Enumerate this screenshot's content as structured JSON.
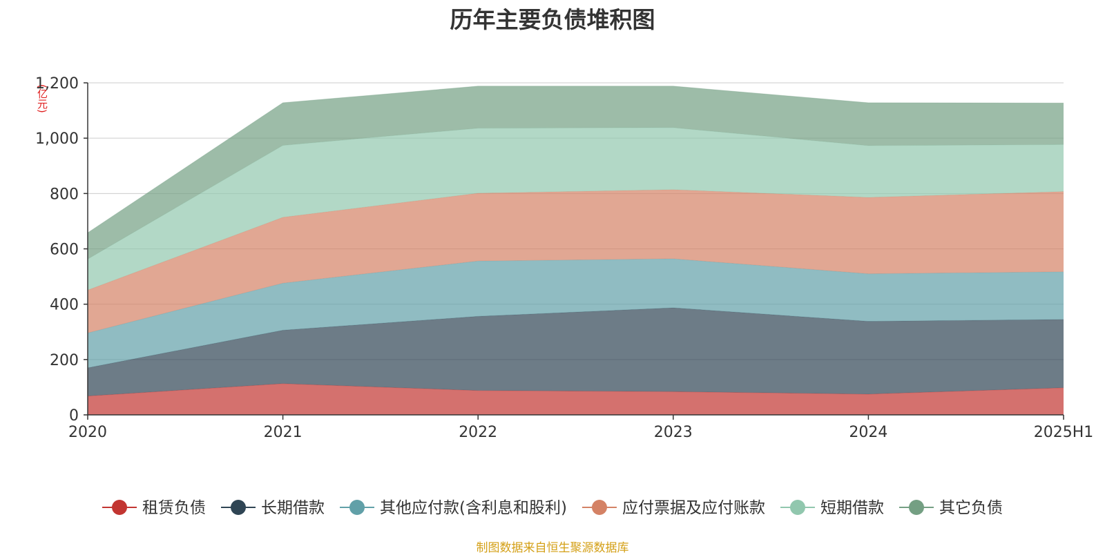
{
  "chart_data": {
    "type": "area",
    "stacked": true,
    "title": "历年主要负债堆积图",
    "unit_label": "(亿元)",
    "x": [
      "2020",
      "2021",
      "2022",
      "2023",
      "2024",
      "2025H1"
    ],
    "ylim": [
      0,
      1200
    ],
    "yticks": [
      0,
      200,
      400,
      600,
      800,
      1000,
      1200
    ],
    "ytick_labels": [
      "0",
      "200",
      "400",
      "600",
      "800",
      "1,000",
      "1,200"
    ],
    "grid": true,
    "legend_position": "bottom",
    "series": [
      {
        "name": "租赁负债",
        "color": "#c23531",
        "values": [
          68,
          113,
          88,
          84,
          75,
          98
        ]
      },
      {
        "name": "长期借款",
        "color": "#2f4554",
        "values": [
          102,
          193,
          268,
          303,
          263,
          247
        ]
      },
      {
        "name": "其他应付款(含利息和股利)",
        "color": "#61a0a8",
        "values": [
          126,
          170,
          200,
          177,
          172,
          172
        ]
      },
      {
        "name": "应付票据及应付账款",
        "color": "#d48265",
        "values": [
          155,
          238,
          245,
          250,
          276,
          290
        ]
      },
      {
        "name": "短期借款",
        "color": "#91c7ae",
        "values": [
          112,
          260,
          235,
          224,
          187,
          170
        ]
      },
      {
        "name": "其它负债",
        "color": "#749f83",
        "values": [
          95,
          154,
          152,
          150,
          155,
          150
        ]
      }
    ]
  },
  "footer": {
    "source": "制图数据来自恒生聚源数据库"
  }
}
